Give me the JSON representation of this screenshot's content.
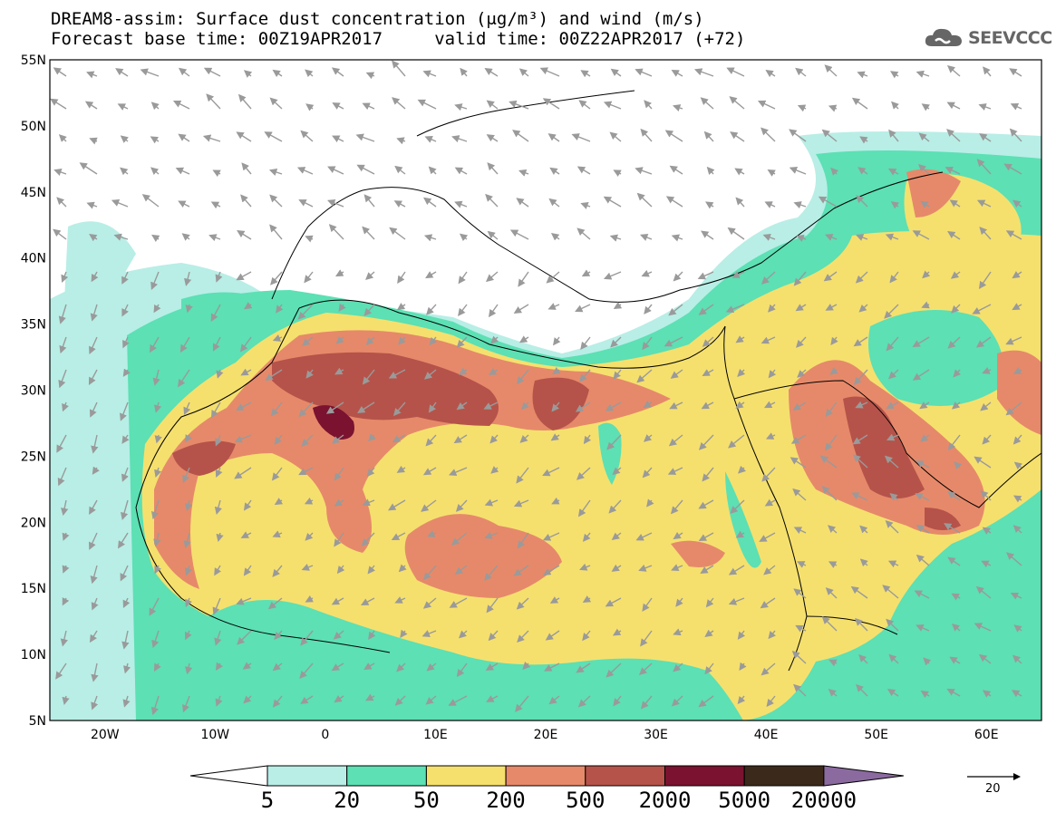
{
  "title": {
    "line1": "DREAM8-assim: Surface dust concentration (μg/m³) and wind (m/s)",
    "line2": "Forecast base time: 00Z19APR2017     valid time: 00Z22APR2017 (+72)"
  },
  "logo": {
    "text": "SEEVCCC",
    "icon": "cloud-icon"
  },
  "map": {
    "lon_range": [
      -25,
      65
    ],
    "lat_range": [
      5,
      55
    ],
    "lat_ticks": [
      "55N",
      "50N",
      "45N",
      "40N",
      "35N",
      "30N",
      "25N",
      "20N",
      "15N",
      "10N",
      "5N"
    ],
    "lon_ticks": [
      "20W",
      "10W",
      "0",
      "10E",
      "20E",
      "30E",
      "40E",
      "50E",
      "60E"
    ],
    "wind_arrow_color": "#9a9a9a",
    "coastline_color": "#000000"
  },
  "colorbar": {
    "labels": [
      "5",
      "20",
      "50",
      "200",
      "500",
      "2000",
      "5000",
      "20000"
    ],
    "colors": [
      "#ffffff",
      "#b8eee6",
      "#5ce0b4",
      "#f5e06e",
      "#e6896a",
      "#b5534a",
      "#7a1230",
      "#3b2a1c",
      "#8b6aa0"
    ]
  },
  "wind_reference": {
    "label": "20"
  }
}
